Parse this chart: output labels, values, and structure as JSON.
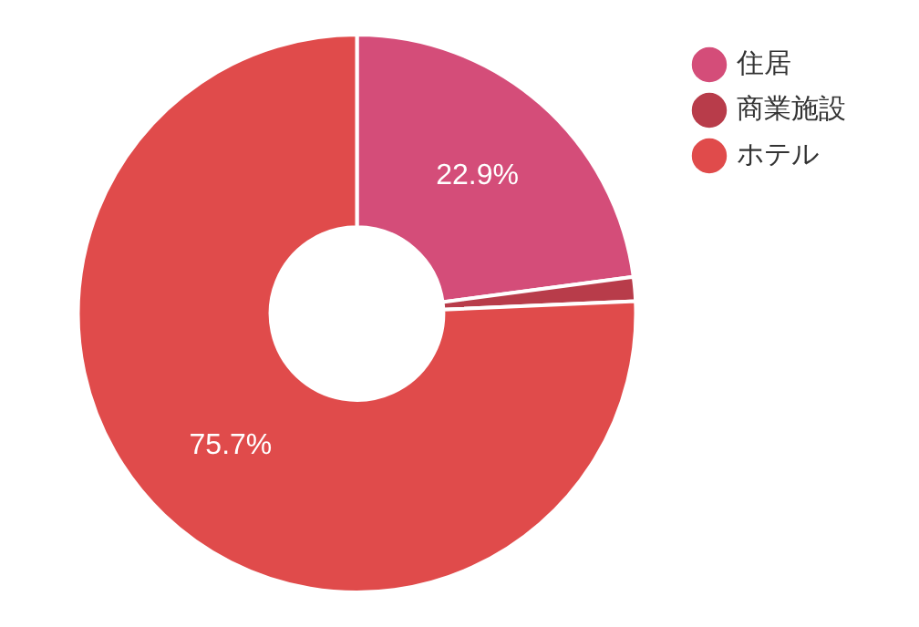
{
  "chart_data": {
    "type": "donut",
    "categories": [
      "住居",
      "商業施設",
      "ホテル"
    ],
    "values": [
      22.9,
      1.4,
      75.7
    ],
    "value_labels": [
      "22.9%",
      null,
      "75.7%"
    ],
    "colors": [
      "#d44d79",
      "#b83c4a",
      "#e04b4b"
    ],
    "legend": "top right"
  }
}
